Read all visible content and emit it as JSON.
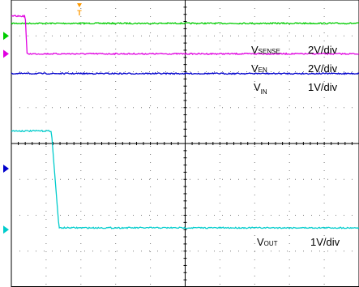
{
  "chart_data": {
    "type": "line",
    "grid": true,
    "x_divisions": 10,
    "y_divisions": 8,
    "trigger_marker": "T",
    "traces": [
      {
        "label_main": "V",
        "label_sub": "SENSE",
        "scale": "2V/div",
        "color": "#00cc00",
        "levels": [
          3.35,
          3.35
        ],
        "marker_level": 3.0
      },
      {
        "label_main": "V",
        "label_sub": "EN",
        "scale": "2V/div",
        "color": "#e000e0",
        "levels": [
          3.55,
          2.5
        ],
        "transition": [
          0.4,
          0.45
        ],
        "marker_level": 2.5
      },
      {
        "label_main": "V",
        "label_sub": "IN",
        "scale": "1V/div",
        "color": "#0000cc",
        "levels": [
          1.95,
          1.95
        ],
        "marker_level": -0.7
      },
      {
        "label_main": "V",
        "label_sub": "OUT",
        "scale": "1V/div",
        "color": "#00cccc",
        "levels": [
          0.35,
          -2.35
        ],
        "transition": [
          1.15,
          1.37
        ],
        "marker_level": -2.4
      }
    ]
  }
}
